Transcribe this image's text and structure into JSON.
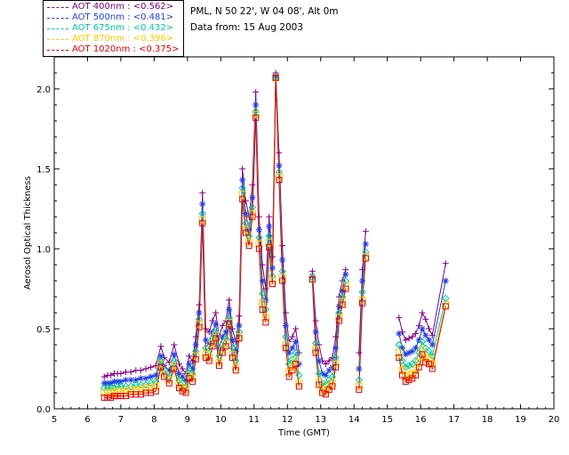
{
  "header": {
    "station": "PML, N 50 22', W 04 08', Alt 0m",
    "date": "Data from: 15 Aug 2003"
  },
  "legend": [
    {
      "label": "AOT  400nm : <0.562>",
      "color": "#800080"
    },
    {
      "label": "AOT  500nm : <0.481>",
      "color": "#1f3fe0"
    },
    {
      "label": "AOT  675nm : <0.432>",
      "color": "#00c8a0"
    },
    {
      "label": "AOT  870nm : <0.396>",
      "color": "#ffc800"
    },
    {
      "label": "AOT 1020nm : <0.375>",
      "color": "#e00000"
    }
  ],
  "chart_data": {
    "type": "line",
    "xlabel": "Time (GMT)",
    "ylabel": "Aerosol Optical Thickness",
    "xlim": [
      5,
      20
    ],
    "ylim": [
      0,
      2.2
    ],
    "xticks": [
      5,
      6,
      7,
      8,
      9,
      10,
      11,
      12,
      13,
      14,
      15,
      16,
      17,
      18,
      19,
      20
    ],
    "yticks": [
      0.0,
      0.5,
      1.0,
      1.5,
      2.0
    ],
    "x": [
      6.5,
      6.6,
      6.7,
      6.8,
      6.9,
      7.0,
      7.15,
      7.3,
      7.45,
      7.6,
      7.75,
      7.9,
      8.05,
      8.2,
      8.3,
      8.45,
      8.6,
      8.75,
      8.85,
      8.95,
      9.05,
      9.15,
      9.25,
      9.35,
      9.45,
      9.55,
      9.65,
      9.75,
      9.85,
      9.95,
      10.05,
      10.15,
      10.25,
      10.35,
      10.45,
      10.55,
      10.65,
      10.75,
      10.85,
      10.95,
      11.05,
      11.15,
      11.25,
      11.35,
      11.45,
      11.55,
      11.65,
      11.75,
      11.85,
      11.95,
      12.05,
      12.15,
      12.25,
      12.35,
      12.75,
      12.85,
      12.95,
      13.05,
      13.15,
      13.25,
      13.35,
      13.45,
      13.55,
      13.65,
      13.75,
      14.15,
      14.25,
      14.35,
      15.35,
      15.45,
      15.55,
      15.65,
      15.75,
      15.85,
      15.95,
      16.05,
      16.15,
      16.25,
      16.35,
      16.75
    ],
    "series": [
      {
        "name": "AOT  400nm : <0.562>",
        "color": "#800080",
        "marker": "plus",
        "values": [
          0.2,
          0.21,
          0.21,
          0.22,
          0.22,
          0.22,
          0.23,
          0.23,
          0.24,
          0.24,
          0.25,
          0.26,
          0.27,
          0.39,
          0.32,
          0.29,
          0.4,
          0.28,
          0.25,
          0.22,
          0.33,
          0.3,
          0.45,
          0.65,
          1.35,
          0.5,
          0.48,
          0.55,
          0.6,
          0.45,
          0.52,
          0.55,
          0.68,
          0.5,
          0.42,
          0.58,
          1.5,
          1.3,
          1.2,
          1.4,
          1.98,
          1.2,
          0.9,
          0.75,
          1.2,
          0.95,
          2.1,
          1.6,
          1.02,
          0.6,
          0.42,
          0.45,
          0.5,
          0.35,
          0.86,
          0.55,
          0.4,
          0.3,
          0.28,
          0.3,
          0.32,
          0.45,
          0.7,
          0.8,
          0.87,
          0.35,
          0.87,
          1.11,
          0.57,
          0.48,
          0.43,
          0.44,
          0.45,
          0.47,
          0.52,
          0.6,
          0.56,
          0.5,
          0.46,
          0.91
        ]
      },
      {
        "name": "AOT  500nm : <0.481>",
        "color": "#1f3fe0",
        "marker": "asterisk",
        "values": [
          0.16,
          0.16,
          0.16,
          0.17,
          0.17,
          0.17,
          0.18,
          0.18,
          0.18,
          0.19,
          0.19,
          0.2,
          0.21,
          0.33,
          0.27,
          0.24,
          0.34,
          0.22,
          0.2,
          0.18,
          0.28,
          0.25,
          0.4,
          0.6,
          1.28,
          0.43,
          0.41,
          0.48,
          0.53,
          0.38,
          0.45,
          0.48,
          0.62,
          0.43,
          0.36,
          0.52,
          1.43,
          1.22,
          1.12,
          1.32,
          1.9,
          1.12,
          0.8,
          0.68,
          1.14,
          0.88,
          2.08,
          1.52,
          0.93,
          0.52,
          0.35,
          0.38,
          0.42,
          0.28,
          0.83,
          0.48,
          0.3,
          0.22,
          0.21,
          0.24,
          0.26,
          0.38,
          0.64,
          0.74,
          0.84,
          0.25,
          0.8,
          1.03,
          0.47,
          0.38,
          0.34,
          0.35,
          0.36,
          0.38,
          0.43,
          0.5,
          0.46,
          0.43,
          0.4,
          0.8
        ]
      },
      {
        "name": "AOT  675nm : <0.432>",
        "color": "#00c8a0",
        "marker": "diamond",
        "values": [
          0.13,
          0.13,
          0.13,
          0.13,
          0.14,
          0.14,
          0.14,
          0.14,
          0.15,
          0.15,
          0.15,
          0.16,
          0.17,
          0.3,
          0.24,
          0.2,
          0.3,
          0.18,
          0.16,
          0.14,
          0.24,
          0.22,
          0.36,
          0.56,
          1.22,
          0.38,
          0.36,
          0.44,
          0.49,
          0.33,
          0.4,
          0.44,
          0.57,
          0.38,
          0.3,
          0.48,
          1.38,
          1.16,
          1.08,
          1.26,
          1.86,
          1.07,
          0.72,
          0.62,
          1.08,
          0.83,
          2.07,
          1.48,
          0.86,
          0.45,
          0.28,
          0.31,
          0.35,
          0.21,
          0.82,
          0.41,
          0.22,
          0.16,
          0.15,
          0.18,
          0.2,
          0.32,
          0.6,
          0.7,
          0.8,
          0.18,
          0.73,
          0.98,
          0.4,
          0.3,
          0.26,
          0.27,
          0.28,
          0.3,
          0.35,
          0.42,
          0.38,
          0.36,
          0.33,
          0.69
        ]
      },
      {
        "name": "AOT  870nm : <0.396>",
        "color": "#ffc800",
        "marker": "square",
        "values": [
          0.1,
          0.1,
          0.1,
          0.11,
          0.11,
          0.11,
          0.11,
          0.12,
          0.12,
          0.12,
          0.13,
          0.13,
          0.14,
          0.28,
          0.22,
          0.18,
          0.27,
          0.15,
          0.13,
          0.12,
          0.21,
          0.19,
          0.33,
          0.53,
          1.18,
          0.34,
          0.32,
          0.41,
          0.46,
          0.29,
          0.37,
          0.41,
          0.54,
          0.34,
          0.26,
          0.45,
          1.34,
          1.12,
          1.04,
          1.22,
          1.84,
          1.03,
          0.66,
          0.57,
          1.04,
          0.8,
          2.07,
          1.45,
          0.82,
          0.4,
          0.23,
          0.26,
          0.3,
          0.16,
          0.81,
          0.37,
          0.17,
          0.12,
          0.11,
          0.14,
          0.16,
          0.28,
          0.57,
          0.67,
          0.77,
          0.14,
          0.68,
          0.95,
          0.35,
          0.24,
          0.2,
          0.21,
          0.22,
          0.24,
          0.29,
          0.37,
          0.32,
          0.31,
          0.28,
          0.65
        ]
      },
      {
        "name": "AOT 1020nm : <0.375>",
        "color": "#e00000",
        "marker": "square",
        "values": [
          0.07,
          0.07,
          0.07,
          0.08,
          0.08,
          0.08,
          0.08,
          0.09,
          0.09,
          0.09,
          0.1,
          0.1,
          0.11,
          0.26,
          0.2,
          0.16,
          0.25,
          0.13,
          0.11,
          0.1,
          0.19,
          0.17,
          0.31,
          0.51,
          1.16,
          0.32,
          0.3,
          0.39,
          0.44,
          0.27,
          0.35,
          0.39,
          0.53,
          0.32,
          0.24,
          0.44,
          1.31,
          1.1,
          1.02,
          1.2,
          1.82,
          1.0,
          0.62,
          0.54,
          1.01,
          0.78,
          2.07,
          1.43,
          0.8,
          0.38,
          0.2,
          0.24,
          0.28,
          0.14,
          0.81,
          0.35,
          0.15,
          0.1,
          0.09,
          0.12,
          0.14,
          0.26,
          0.55,
          0.65,
          0.75,
          0.12,
          0.66,
          0.94,
          0.32,
          0.21,
          0.17,
          0.18,
          0.19,
          0.21,
          0.26,
          0.34,
          0.29,
          0.28,
          0.25,
          0.64
        ]
      }
    ],
    "gaps_after_x": [
      12.35,
      13.75,
      14.35
    ]
  }
}
